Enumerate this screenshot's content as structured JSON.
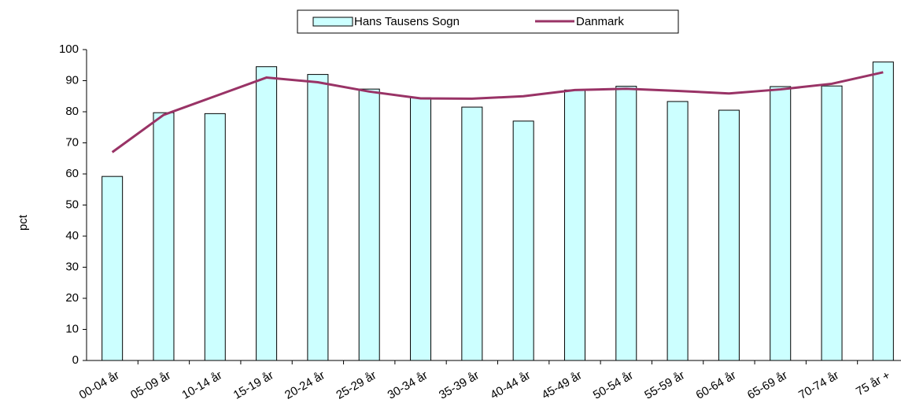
{
  "chart_data": {
    "type": "bar",
    "categories": [
      "00-04 år",
      "05-09 år",
      "10-14 år",
      "15-19 år",
      "20-24 år",
      "25-29 år",
      "30-34 år",
      "35-39 år",
      "40-44 år",
      "45-49 år",
      "50-54 år",
      "55-59 år",
      "60-64 år",
      "65-69 år",
      "70-74 år",
      "75 år +"
    ],
    "series": [
      {
        "name": "Hans Tausens Sogn",
        "type": "bar",
        "color": "#ccffff",
        "values": [
          59.2,
          79.7,
          79.4,
          94.5,
          92,
          87.3,
          84.5,
          81.5,
          77,
          87,
          88.2,
          83.3,
          80.5,
          88.1,
          88.3,
          96
        ]
      },
      {
        "name": "Danmark",
        "type": "line",
        "color": "#993366",
        "values": [
          67,
          79,
          85,
          91,
          89.5,
          86.5,
          84.3,
          84.2,
          85,
          87,
          87.4,
          86.7,
          85.9,
          87.2,
          89,
          92.7
        ]
      }
    ],
    "y_label": "pct",
    "ylim": [
      0,
      100
    ],
    "yticks": [
      0,
      10,
      20,
      30,
      40,
      50,
      60,
      70,
      80,
      90,
      100
    ],
    "legend": "top"
  }
}
